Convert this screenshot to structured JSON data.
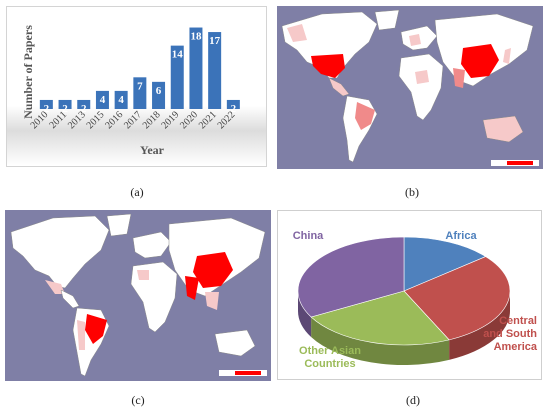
{
  "captions": {
    "a": "(a)",
    "b": "(b)",
    "c": "(c)",
    "d": "(d)"
  },
  "chart_data": [
    {
      "id": "a",
      "type": "bar",
      "categories": [
        "2010",
        "2011",
        "2013",
        "2015",
        "2016",
        "2017",
        "2018",
        "2019",
        "2020",
        "2021",
        "2022"
      ],
      "values": [
        2,
        2,
        2,
        4,
        4,
        7,
        6,
        14,
        18,
        17,
        2
      ],
      "xlabel": "Year",
      "ylabel": "Number of Papers",
      "ylim": [
        0,
        19
      ],
      "grid": false,
      "bar_color": "#3b73b9",
      "label_color": "#ffffff"
    },
    {
      "id": "d",
      "type": "pie",
      "style": "3d",
      "labels": [
        "Africa",
        "Central and South America",
        "Other Asian Countries",
        "China"
      ],
      "label_lines": {
        "Africa": [
          "Africa"
        ],
        "Central and South America": [
          "Central",
          "and South",
          "America"
        ],
        "Other Asian Countries": [
          "Other Asian",
          "Countries"
        ],
        "China": [
          "China"
        ]
      },
      "values": [
        14,
        29,
        24,
        33
      ],
      "colors": [
        "#4f81bd",
        "#c0504d",
        "#9bbb59",
        "#8064a2"
      ],
      "label_colors": [
        "#4f81bd",
        "#c0504d",
        "#9bbb59",
        "#8064a2"
      ]
    }
  ],
  "maps": {
    "b": {
      "type": "choropleth",
      "ocean": "#7f7fa6",
      "land": "#ffffff",
      "high": "#ff0000",
      "mid": "#f08a8a",
      "low": "#f6c9c9"
    },
    "c": {
      "type": "choropleth",
      "ocean": "#7f7fa6",
      "land": "#ffffff",
      "high": "#ff0000",
      "mid": "#f08a8a",
      "low": "#f6c9c9"
    }
  }
}
